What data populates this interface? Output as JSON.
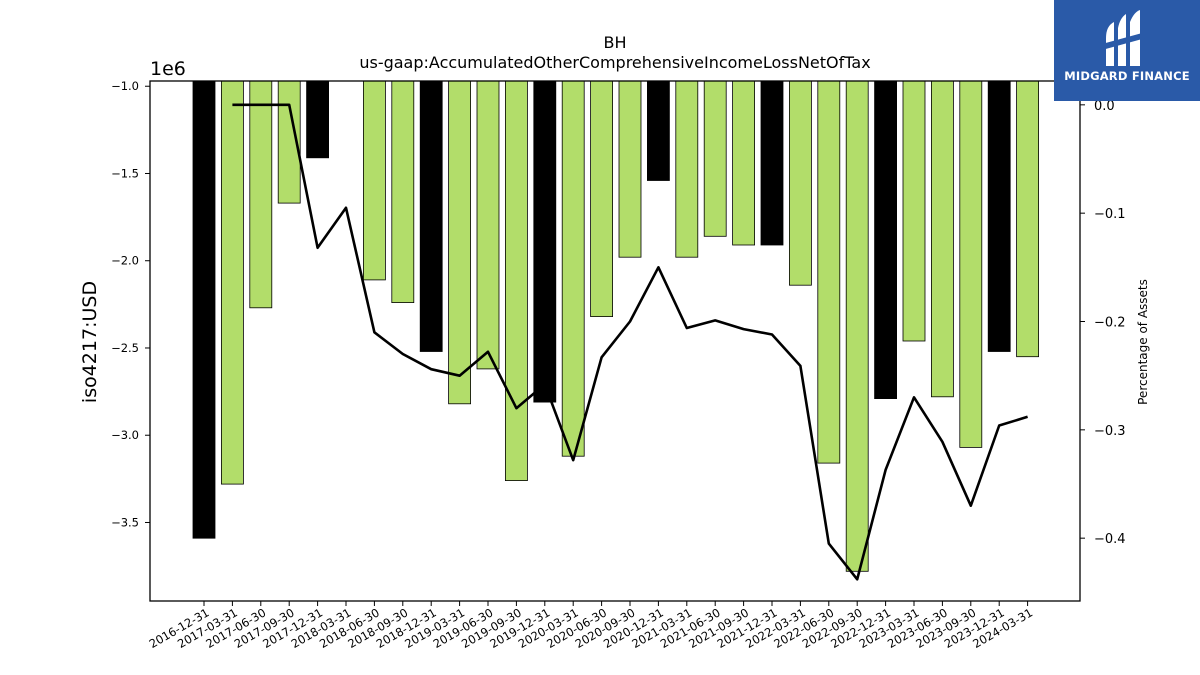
{
  "chart_data": {
    "type": "bar",
    "title": "BH",
    "subtitle": "us-gaap:AccumulatedOtherComprehensiveIncomeLossNetOfTax",
    "ylabel": "iso4217:USD",
    "y_offset_label": "1e6",
    "y2label": "Percentage of Assets",
    "ylim": [
      -3.95,
      -0.97
    ],
    "y2lim": [
      -0.458,
      0.022
    ],
    "yticks": [
      -1.0,
      -1.5,
      -2.0,
      -2.5,
      -3.0,
      -3.5
    ],
    "ytick_labels": [
      "−1.0",
      "−1.5",
      "−2.0",
      "−2.5",
      "−3.0",
      "−3.5"
    ],
    "y2ticks": [
      0.0,
      -0.1,
      -0.2,
      -0.3,
      -0.4
    ],
    "y2tick_labels": [
      "0.0",
      "−0.1",
      "−0.2",
      "−0.3",
      "−0.4"
    ],
    "categories": [
      "2016-12-31",
      "2017-03-31",
      "2017-06-30",
      "2017-09-30",
      "2017-12-31",
      "2018-03-31",
      "2018-06-30",
      "2018-09-30",
      "2018-12-31",
      "2019-03-31",
      "2019-06-30",
      "2019-09-30",
      "2019-12-31",
      "2020-03-31",
      "2020-06-30",
      "2020-09-30",
      "2020-12-31",
      "2021-03-31",
      "2021-06-30",
      "2021-09-30",
      "2021-12-31",
      "2022-03-31",
      "2022-06-30",
      "2022-09-30",
      "2022-12-31",
      "2023-03-31",
      "2023-06-30",
      "2023-09-30",
      "2023-12-31",
      "2024-03-31"
    ],
    "values": [
      -3.59,
      -3.28,
      -2.27,
      -1.67,
      -1.41,
      null,
      -2.11,
      -2.24,
      -2.52,
      -2.82,
      -2.62,
      -3.26,
      -2.81,
      -3.12,
      -2.32,
      -1.98,
      -1.54,
      -1.98,
      -1.86,
      -1.91,
      -1.91,
      -2.14,
      -3.16,
      -3.78,
      -2.79,
      -2.46,
      -2.78,
      -3.07,
      -2.52,
      -2.55
    ],
    "bar_colors": [
      "#000000",
      "#b2dd6a",
      "#b2dd6a",
      "#b2dd6a",
      "#000000",
      "#b2dd6a",
      "#b2dd6a",
      "#b2dd6a",
      "#000000",
      "#b2dd6a",
      "#b2dd6a",
      "#b2dd6a",
      "#000000",
      "#b2dd6a",
      "#b2dd6a",
      "#b2dd6a",
      "#000000",
      "#b2dd6a",
      "#b2dd6a",
      "#b2dd6a",
      "#000000",
      "#b2dd6a",
      "#b2dd6a",
      "#b2dd6a",
      "#000000",
      "#b2dd6a",
      "#b2dd6a",
      "#b2dd6a",
      "#000000",
      "#b2dd6a"
    ],
    "line_values": [
      null,
      0.0,
      0.0,
      0.0,
      -0.132,
      -0.095,
      -0.21,
      -0.23,
      -0.244,
      -0.25,
      -0.228,
      -0.28,
      -0.258,
      -0.328,
      -0.233,
      -0.2,
      -0.15,
      -0.206,
      -0.199,
      -0.207,
      -0.212,
      -0.241,
      -0.405,
      -0.438,
      -0.337,
      -0.27,
      -0.311,
      -0.37,
      -0.296,
      -0.288
    ],
    "line_color": "#000000",
    "grid": false
  },
  "logo": {
    "text": "MIDGARD FINANCE",
    "icon": "midgard-logo-icon"
  }
}
